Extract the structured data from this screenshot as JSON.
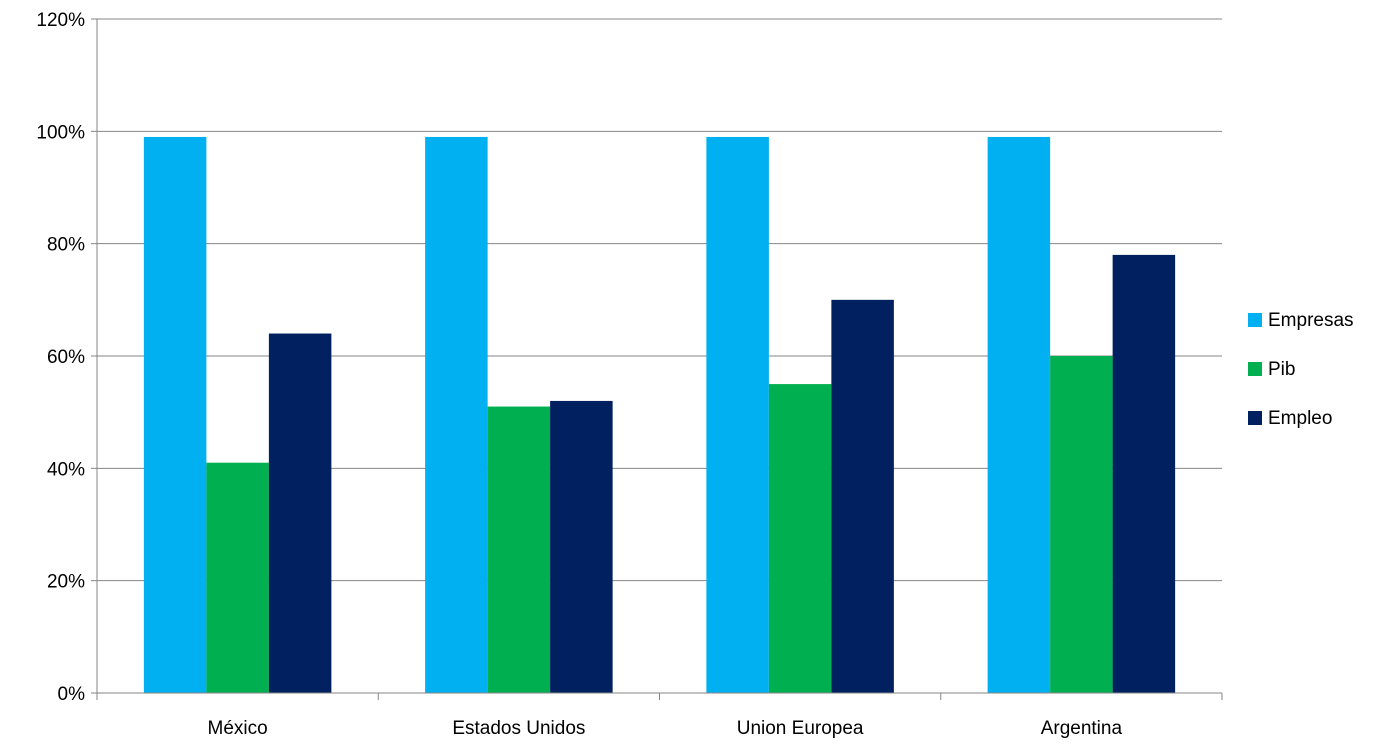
{
  "chart_data": {
    "type": "bar",
    "categories": [
      "México",
      "Estados Unidos",
      "Union Europea",
      "Argentina"
    ],
    "series": [
      {
        "name": "Empresas",
        "values": [
          99,
          99,
          99,
          99
        ],
        "color": "#00B0F0"
      },
      {
        "name": "Pib",
        "values": [
          41,
          51,
          55,
          60
        ],
        "color": "#00B050"
      },
      {
        "name": "Empleo",
        "values": [
          64,
          52,
          70,
          78
        ],
        "color": "#002060"
      }
    ],
    "ylim": [
      0,
      120
    ],
    "yticks": [
      0,
      20,
      40,
      60,
      80,
      100,
      120
    ],
    "ytick_labels": [
      "0%",
      "20%",
      "40%",
      "60%",
      "80%",
      "100%",
      "120%"
    ],
    "title": "",
    "xlabel": "",
    "ylabel": "",
    "grid": true,
    "legend_position": "right"
  }
}
